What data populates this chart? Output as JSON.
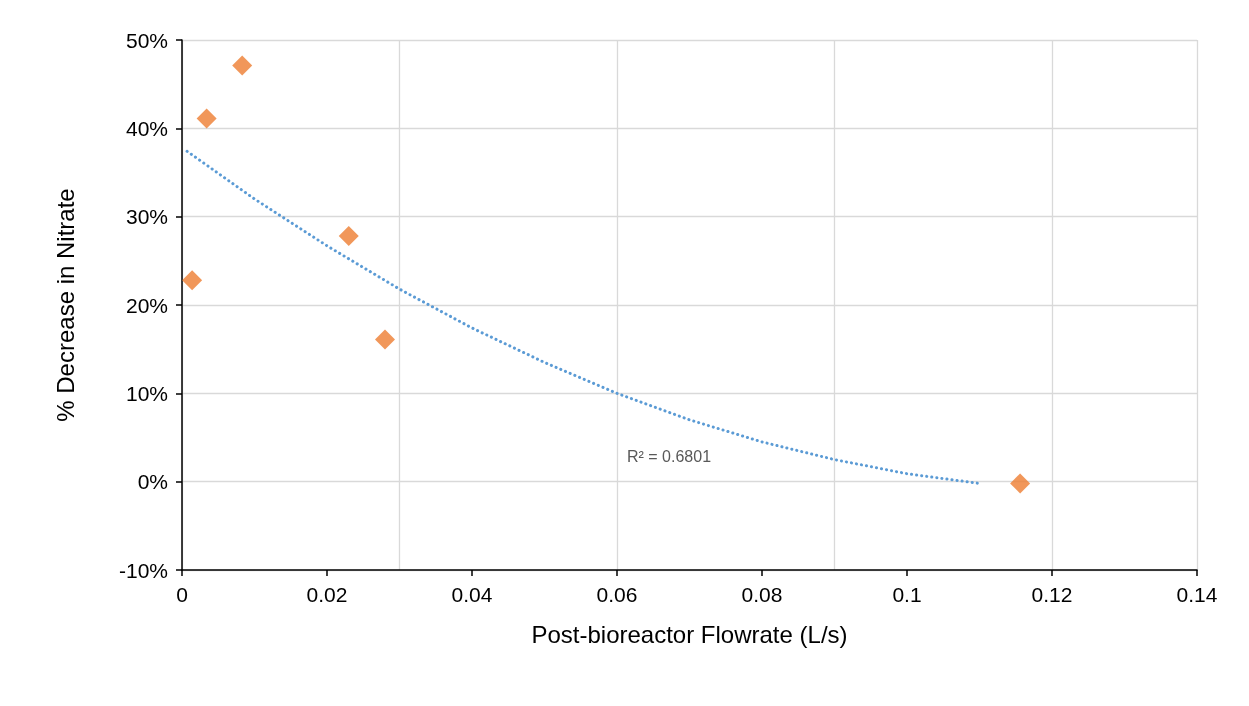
{
  "chart_data": {
    "type": "scatter",
    "xlabel": "Post-bioreactor Flowrate (L/s)",
    "ylabel": "% Decrease in Nitrate",
    "xlim": [
      0,
      0.14
    ],
    "xticks": [
      0,
      0.02,
      0.04,
      0.06,
      0.08,
      0.1,
      0.12,
      0.14
    ],
    "ylim": [
      -10,
      50
    ],
    "yticks": [
      {
        "value": -10,
        "label": "-10%"
      },
      {
        "value": 0,
        "label": "0%"
      },
      {
        "value": 10,
        "label": "10%"
      },
      {
        "value": 20,
        "label": "20%"
      },
      {
        "value": 30,
        "label": "30%"
      },
      {
        "value": 40,
        "label": "40%"
      },
      {
        "value": 50,
        "label": "50%"
      }
    ],
    "grid": true,
    "marker": "diamond",
    "series": [
      {
        "color": "#ed7d31",
        "x": [
          0.0014,
          0.0034,
          0.0083,
          0.023,
          0.028,
          0.1156
        ],
        "values": [
          22.8,
          41.1,
          47.1,
          27.8,
          16.1,
          -0.2
        ]
      },
      {
        "type": "line",
        "color": "#5b9bd5",
        "line_style": "dotted",
        "marker": "none",
        "x": [
          0.0007,
          0.01,
          0.02,
          0.03,
          0.04,
          0.05,
          0.06,
          0.07,
          0.08,
          0.09,
          0.1,
          0.11
        ],
        "values": [
          37.4,
          32.0,
          26.7,
          21.8,
          17.4,
          13.5,
          10.0,
          7.0,
          4.5,
          2.5,
          0.9,
          -0.2
        ]
      }
    ],
    "annotations": [
      "R² = 0.6801"
    ]
  }
}
